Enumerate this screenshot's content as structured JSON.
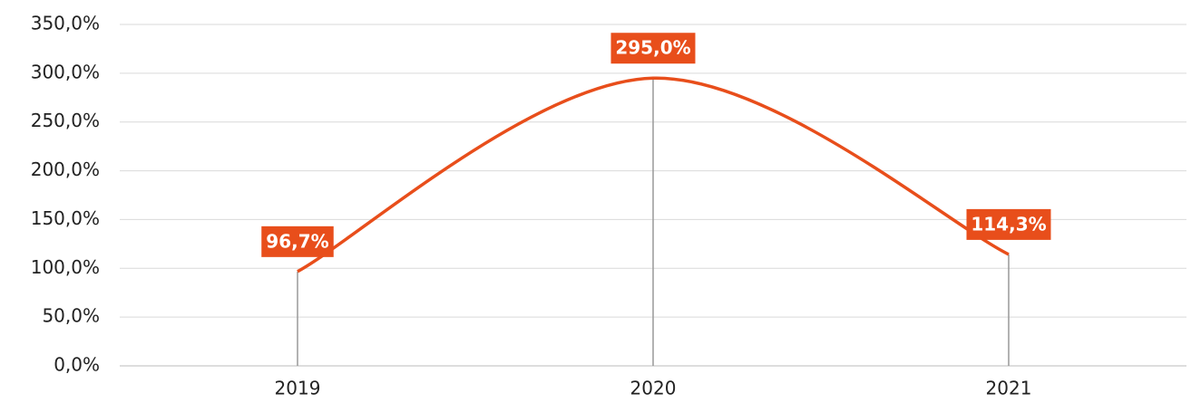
{
  "chart_data": {
    "type": "line",
    "categories": [
      "2019",
      "2020",
      "2021"
    ],
    "series": [
      {
        "color": "#e84e1b",
        "values": [
          96.7,
          295.0,
          114.3
        ],
        "value_labels": [
          "96,7%",
          "295,0%",
          "114,3%"
        ]
      }
    ],
    "ylim": [
      0,
      350
    ],
    "yticks": [
      {
        "value": 0,
        "label": "0,0%"
      },
      {
        "value": 50,
        "label": "50,0%"
      },
      {
        "value": 100,
        "label": "100,0%"
      },
      {
        "value": 150,
        "label": "150,0%"
      },
      {
        "value": 200,
        "label": "200,0%"
      },
      {
        "value": 250,
        "label": "250,0%"
      },
      {
        "value": 300,
        "label": "300,0%"
      },
      {
        "value": 350,
        "label": "350,0%"
      }
    ],
    "grid": true
  }
}
